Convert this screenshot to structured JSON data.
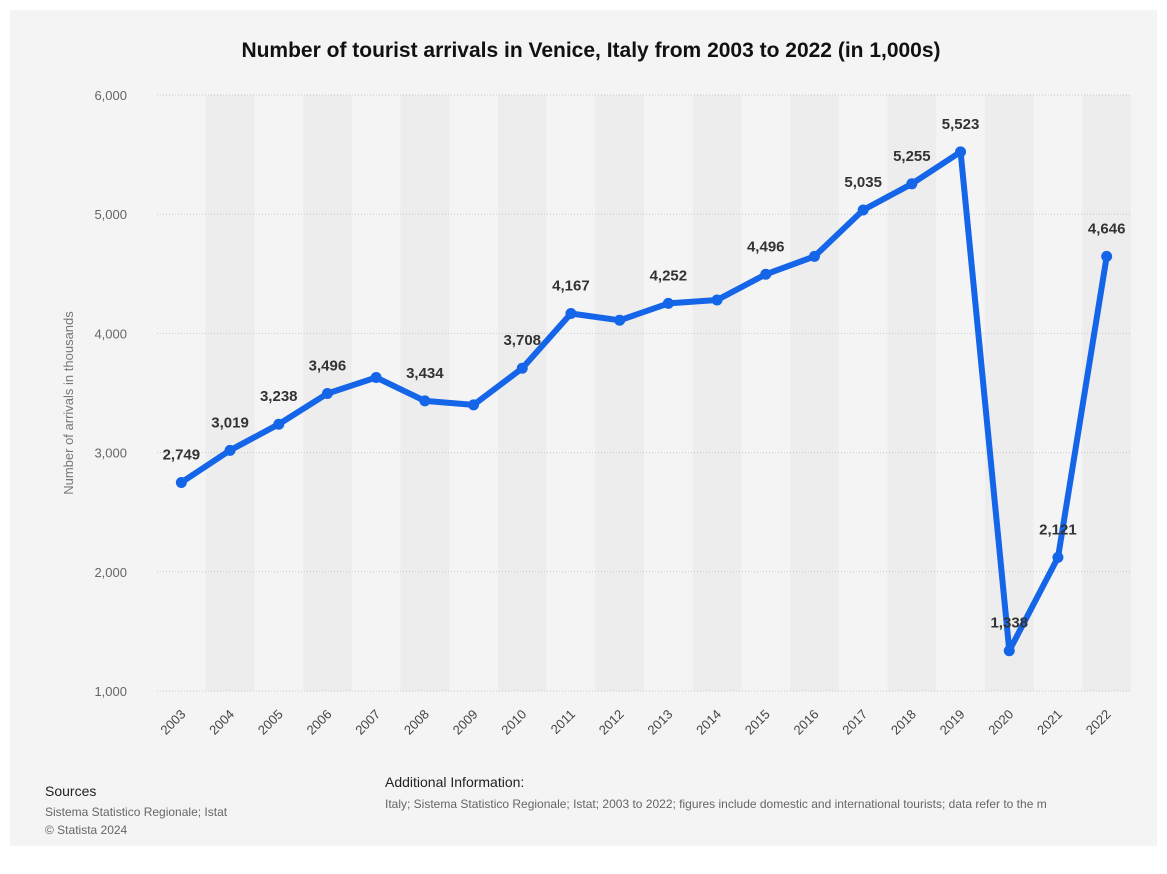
{
  "chart_data": {
    "type": "line",
    "title": "Number of tourist arrivals in Venice, Italy from 2003 to 2022 (in 1,000s)",
    "xlabel": "",
    "ylabel": "Number of arrivals in thousands",
    "categories": [
      "2003",
      "2004",
      "2005",
      "2006",
      "2007",
      "2008",
      "2009",
      "2010",
      "2011",
      "2012",
      "2013",
      "2014",
      "2015",
      "2016",
      "2017",
      "2018",
      "2019",
      "2020",
      "2021",
      "2022"
    ],
    "values": [
      2749,
      3019,
      3238,
      3496,
      3630,
      3434,
      3400,
      3708,
      4167,
      4110,
      4252,
      4280,
      4496,
      4646,
      5035,
      5255,
      5523,
      1338,
      2121,
      4646
    ],
    "data_labels": [
      "2,749",
      "3,019",
      "3,238",
      "3,496",
      "",
      "3,434",
      "",
      "3,708",
      "4,167",
      "",
      "4,252",
      "",
      "4,496",
      "",
      "5,035",
      "5,255",
      "5,523",
      "1,338",
      "2,121",
      "4,646"
    ],
    "ylim": [
      1000,
      6000
    ],
    "yticks": [
      1000,
      2000,
      3000,
      4000,
      5000,
      6000
    ],
    "ytick_labels": [
      "1,000",
      "2,000",
      "3,000",
      "4,000",
      "5,000",
      "6,000"
    ],
    "grid": true,
    "line_color": "#1565e8",
    "band_color": "#ededed"
  },
  "footer": {
    "sources_heading": "Sources",
    "sources_line1": "Sistema Statistico Regionale; Istat",
    "sources_line2": "© Statista 2024",
    "additional_heading": "Additional Information:",
    "additional_text": "Italy; Sistema Statistico Regionale; Istat; 2003 to 2022; figures include domestic and international tourists; data refer to the m"
  }
}
